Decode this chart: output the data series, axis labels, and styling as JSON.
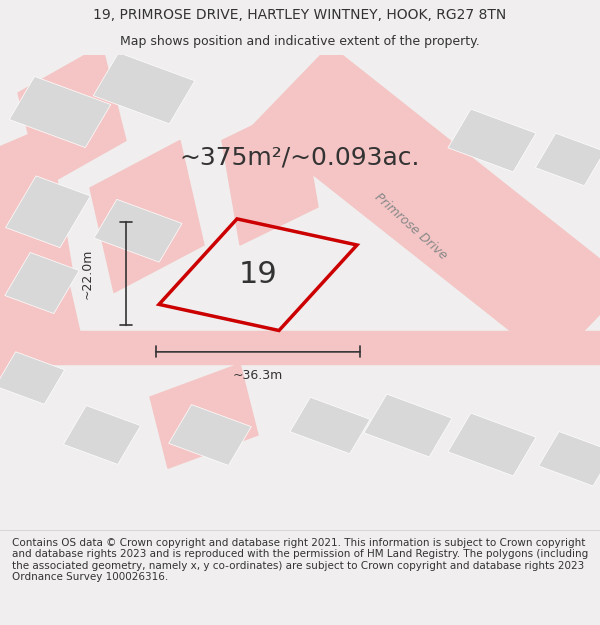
{
  "title_line1": "19, PRIMROSE DRIVE, HARTLEY WINTNEY, HOOK, RG27 8TN",
  "title_line2": "Map shows position and indicative extent of the property.",
  "area_text": "~375m²/~0.093ac.",
  "plot_number": "19",
  "dim_width": "~36.3m",
  "dim_height": "~22.0m",
  "road_label": "Primrose Drive",
  "footer_text": "Contains OS data © Crown copyright and database right 2021. This information is subject to Crown copyright and database rights 2023 and is reproduced with the permission of HM Land Registry. The polygons (including the associated geometry, namely x, y co-ordinates) are subject to Crown copyright and database rights 2023 Ordnance Survey 100026316.",
  "bg_color": "#f0eeee",
  "map_bg": "#f0eeee",
  "road_color": "#f5c5c5",
  "block_color": "#d8d8d8",
  "plot_outline_color": "#cc0000",
  "dim_line_color": "#333333",
  "text_color": "#333333",
  "road_label_color": "#888888",
  "footer_bg": "#ffffff",
  "title_fontsize": 10,
  "subtitle_fontsize": 9,
  "area_fontsize": 18,
  "plot_label_fontsize": 22,
  "dim_fontsize": 9,
  "road_label_fontsize": 9,
  "footer_fontsize": 7.5
}
